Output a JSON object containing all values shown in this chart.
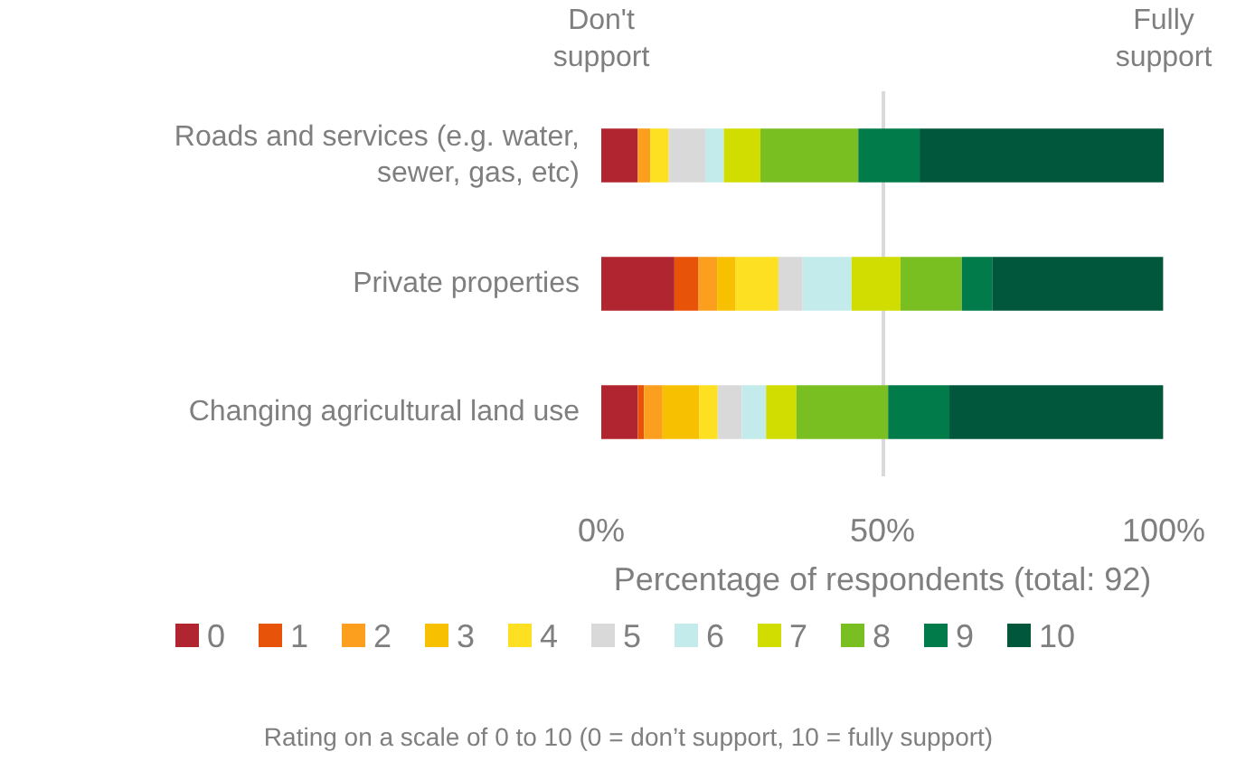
{
  "chart_data": {
    "type": "bar",
    "orientation": "horizontal",
    "stacked": true,
    "categories": [
      "Roads and services (e.g. water, sewer, gas, etc)",
      "Private properties",
      "Changing agricultural land use"
    ],
    "series": [
      {
        "name": "0",
        "color": "#b0252f",
        "values": [
          6.5,
          13.0,
          6.5
        ]
      },
      {
        "name": "1",
        "color": "#e65309",
        "values": [
          0,
          4.3,
          1.1
        ]
      },
      {
        "name": "2",
        "color": "#fc9f1e",
        "values": [
          2.2,
          3.3,
          3.3
        ]
      },
      {
        "name": "3",
        "color": "#f7c000",
        "values": [
          0,
          3.3,
          6.5
        ]
      },
      {
        "name": "4",
        "color": "#fde021",
        "values": [
          3.3,
          7.6,
          3.3
        ]
      },
      {
        "name": "5",
        "color": "#d9d9d9",
        "values": [
          6.5,
          4.3,
          4.3
        ]
      },
      {
        "name": "6",
        "color": "#c3ebeb",
        "values": [
          3.3,
          8.7,
          4.3
        ]
      },
      {
        "name": "7",
        "color": "#d1dd00",
        "values": [
          6.5,
          8.7,
          5.4
        ]
      },
      {
        "name": "8",
        "color": "#7abf22",
        "values": [
          17.4,
          10.9,
          16.3
        ]
      },
      {
        "name": "9",
        "color": "#007b49",
        "values": [
          10.9,
          5.4,
          10.9
        ]
      },
      {
        "name": "10",
        "color": "#00573c",
        "values": [
          43.4,
          30.4,
          38.0
        ]
      }
    ],
    "xlim": [
      0,
      100
    ],
    "xticks": [
      {
        "value": 0,
        "label": "0%"
      },
      {
        "value": 50,
        "label": "50%"
      },
      {
        "value": 100,
        "label": "100%"
      }
    ],
    "xlabel": "Percentage of respondents (total: 92)",
    "grid": "x",
    "legend": "bottom",
    "annotations": [
      "Don't\nsupport",
      "Fully\nsupport",
      "Rating on a scale of 0 to 10 (0 = don’t support, 10 = fully support)"
    ]
  }
}
